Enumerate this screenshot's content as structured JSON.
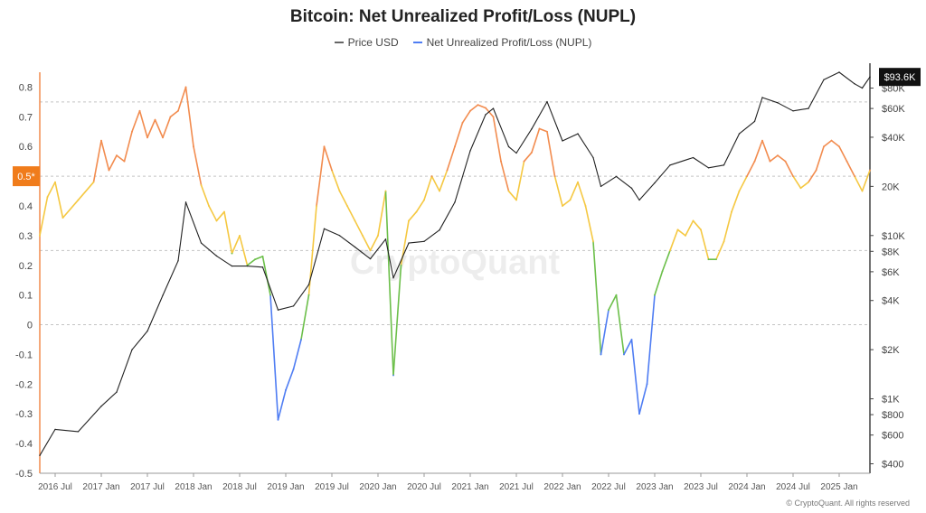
{
  "chart_data": {
    "type": "line",
    "title": "Bitcoin: Net Unrealized Profit/Loss (NUPL)",
    "legend": [
      {
        "name": "Price USD",
        "color": "#666666"
      },
      {
        "name": "Net Unrealized Profit/Loss (NUPL)",
        "color": "#4f7df3"
      }
    ],
    "legend_position": "top-center",
    "grid": false,
    "x_ticks": [
      "2016 Jul",
      "2017 Jan",
      "2017 Jul",
      "2018 Jan",
      "2018 Jul",
      "2019 Jan",
      "2019 Jul",
      "2020 Jan",
      "2020 Jul",
      "2021 Jan",
      "2021 Jul",
      "2022 Jan",
      "2022 Jul",
      "2023 Jan",
      "2023 Jul",
      "2024 Jan",
      "2024 Jul",
      "2025 Jan"
    ],
    "x_range": [
      "2016-05",
      "2025-05"
    ],
    "y_left": {
      "range": [
        -0.5,
        0.85
      ],
      "ticks": [
        "0.8",
        "0.7",
        "0.6",
        "0.5",
        "0.4",
        "0.3",
        "0.2",
        "0.1",
        "0",
        "-0.1",
        "-0.2",
        "-0.3",
        "-0.4",
        "-0.5"
      ]
    },
    "y_right": {
      "scale": "log",
      "ticks": [
        "$80K",
        "$60K",
        "$40K",
        "20K",
        "$10K",
        "$8K",
        "$6K",
        "$4K",
        "$2K",
        "$1K",
        "$800",
        "$600",
        "$400"
      ]
    },
    "reference_lines": [
      0.75,
      0.5,
      0.25,
      0
    ],
    "zone_colors": {
      "euphoria": "#f28c4f",
      "belief": "#f5c842",
      "hope": "#6cbf4a",
      "capitulation": "#4f7df3"
    },
    "current_marker": {
      "label": "0.5*",
      "color": "#f07c1b"
    },
    "price_marker": {
      "label": "$93.6K"
    },
    "watermark": "CryptoQuant",
    "series": [
      {
        "name": "Price USD",
        "color": "#666666",
        "points": [
          [
            "2016-05",
            450
          ],
          [
            "2016-07",
            650
          ],
          [
            "2016-10",
            630
          ],
          [
            "2017-01",
            900
          ],
          [
            "2017-03",
            1100
          ],
          [
            "2017-05",
            2000
          ],
          [
            "2017-07",
            2600
          ],
          [
            "2017-09",
            4300
          ],
          [
            "2017-11",
            7000
          ],
          [
            "2017-12",
            16000
          ],
          [
            "2018-02",
            9000
          ],
          [
            "2018-04",
            7500
          ],
          [
            "2018-06",
            6500
          ],
          [
            "2018-08",
            6500
          ],
          [
            "2018-10",
            6400
          ],
          [
            "2018-12",
            3500
          ],
          [
            "2019-02",
            3700
          ],
          [
            "2019-04",
            5000
          ],
          [
            "2019-06",
            11000
          ],
          [
            "2019-08",
            10000
          ],
          [
            "2019-10",
            8500
          ],
          [
            "2019-12",
            7200
          ],
          [
            "2020-02",
            9500
          ],
          [
            "2020-03",
            5500
          ],
          [
            "2020-05",
            9000
          ],
          [
            "2020-07",
            9200
          ],
          [
            "2020-09",
            10800
          ],
          [
            "2020-11",
            16000
          ],
          [
            "2021-01",
            33000
          ],
          [
            "2021-03",
            55000
          ],
          [
            "2021-04",
            60000
          ],
          [
            "2021-06",
            35000
          ],
          [
            "2021-07",
            32000
          ],
          [
            "2021-09",
            45000
          ],
          [
            "2021-11",
            66000
          ],
          [
            "2022-01",
            38000
          ],
          [
            "2022-03",
            42000
          ],
          [
            "2022-05",
            30000
          ],
          [
            "2022-06",
            20000
          ],
          [
            "2022-08",
            23000
          ],
          [
            "2022-10",
            19500
          ],
          [
            "2022-11",
            16500
          ],
          [
            "2023-01",
            21000
          ],
          [
            "2023-03",
            27000
          ],
          [
            "2023-06",
            30000
          ],
          [
            "2023-08",
            26000
          ],
          [
            "2023-10",
            27000
          ],
          [
            "2023-12",
            42000
          ],
          [
            "2024-02",
            50000
          ],
          [
            "2024-03",
            70000
          ],
          [
            "2024-05",
            65000
          ],
          [
            "2024-07",
            58000
          ],
          [
            "2024-09",
            60000
          ],
          [
            "2024-11",
            90000
          ],
          [
            "2025-01",
            100000
          ],
          [
            "2025-03",
            85000
          ],
          [
            "2025-04",
            80000
          ],
          [
            "2025-05",
            93600
          ]
        ]
      },
      {
        "name": "Net Unrealized Profit/Loss (NUPL)",
        "color": "#4f7df3",
        "points": [
          [
            "2016-05",
            0.3
          ],
          [
            "2016-06",
            0.43
          ],
          [
            "2016-07",
            0.48
          ],
          [
            "2016-08",
            0.36
          ],
          [
            "2016-10",
            0.42
          ],
          [
            "2016-12",
            0.48
          ],
          [
            "2017-01",
            0.62
          ],
          [
            "2017-02",
            0.52
          ],
          [
            "2017-03",
            0.57
          ],
          [
            "2017-04",
            0.55
          ],
          [
            "2017-05",
            0.65
          ],
          [
            "2017-06",
            0.72
          ],
          [
            "2017-07",
            0.63
          ],
          [
            "2017-08",
            0.69
          ],
          [
            "2017-09",
            0.63
          ],
          [
            "2017-10",
            0.7
          ],
          [
            "2017-11",
            0.72
          ],
          [
            "2017-12",
            0.8
          ],
          [
            "2018-01",
            0.6
          ],
          [
            "2018-02",
            0.47
          ],
          [
            "2018-03",
            0.4
          ],
          [
            "2018-04",
            0.35
          ],
          [
            "2018-05",
            0.38
          ],
          [
            "2018-06",
            0.24
          ],
          [
            "2018-07",
            0.3
          ],
          [
            "2018-08",
            0.2
          ],
          [
            "2018-09",
            0.22
          ],
          [
            "2018-10",
            0.23
          ],
          [
            "2018-11",
            0.1
          ],
          [
            "2018-12",
            -0.32
          ],
          [
            "2019-01",
            -0.22
          ],
          [
            "2019-02",
            -0.15
          ],
          [
            "2019-03",
            -0.05
          ],
          [
            "2019-04",
            0.1
          ],
          [
            "2019-05",
            0.4
          ],
          [
            "2019-06",
            0.6
          ],
          [
            "2019-07",
            0.52
          ],
          [
            "2019-08",
            0.45
          ],
          [
            "2019-09",
            0.4
          ],
          [
            "2019-10",
            0.35
          ],
          [
            "2019-11",
            0.3
          ],
          [
            "2019-12",
            0.25
          ],
          [
            "2020-01",
            0.3
          ],
          [
            "2020-02",
            0.45
          ],
          [
            "2020-03",
            -0.17
          ],
          [
            "2020-04",
            0.2
          ],
          [
            "2020-05",
            0.35
          ],
          [
            "2020-06",
            0.38
          ],
          [
            "2020-07",
            0.42
          ],
          [
            "2020-08",
            0.5
          ],
          [
            "2020-09",
            0.45
          ],
          [
            "2020-10",
            0.52
          ],
          [
            "2020-11",
            0.6
          ],
          [
            "2020-12",
            0.68
          ],
          [
            "2021-01",
            0.72
          ],
          [
            "2021-02",
            0.74
          ],
          [
            "2021-03",
            0.73
          ],
          [
            "2021-04",
            0.7
          ],
          [
            "2021-05",
            0.55
          ],
          [
            "2021-06",
            0.45
          ],
          [
            "2021-07",
            0.42
          ],
          [
            "2021-08",
            0.55
          ],
          [
            "2021-09",
            0.58
          ],
          [
            "2021-10",
            0.66
          ],
          [
            "2021-11",
            0.65
          ],
          [
            "2021-12",
            0.5
          ],
          [
            "2022-01",
            0.4
          ],
          [
            "2022-02",
            0.42
          ],
          [
            "2022-03",
            0.48
          ],
          [
            "2022-04",
            0.4
          ],
          [
            "2022-05",
            0.28
          ],
          [
            "2022-06",
            -0.1
          ],
          [
            "2022-07",
            0.05
          ],
          [
            "2022-08",
            0.1
          ],
          [
            "2022-09",
            -0.1
          ],
          [
            "2022-10",
            -0.05
          ],
          [
            "2022-11",
            -0.3
          ],
          [
            "2022-12",
            -0.2
          ],
          [
            "2023-01",
            0.1
          ],
          [
            "2023-02",
            0.18
          ],
          [
            "2023-03",
            0.25
          ],
          [
            "2023-04",
            0.32
          ],
          [
            "2023-05",
            0.3
          ],
          [
            "2023-06",
            0.35
          ],
          [
            "2023-07",
            0.32
          ],
          [
            "2023-08",
            0.22
          ],
          [
            "2023-09",
            0.22
          ],
          [
            "2023-10",
            0.28
          ],
          [
            "2023-11",
            0.38
          ],
          [
            "2023-12",
            0.45
          ],
          [
            "2024-01",
            0.5
          ],
          [
            "2024-02",
            0.55
          ],
          [
            "2024-03",
            0.62
          ],
          [
            "2024-04",
            0.55
          ],
          [
            "2024-05",
            0.57
          ],
          [
            "2024-06",
            0.55
          ],
          [
            "2024-07",
            0.5
          ],
          [
            "2024-08",
            0.46
          ],
          [
            "2024-09",
            0.48
          ],
          [
            "2024-10",
            0.52
          ],
          [
            "2024-11",
            0.6
          ],
          [
            "2024-12",
            0.62
          ],
          [
            "2025-01",
            0.6
          ],
          [
            "2025-02",
            0.55
          ],
          [
            "2025-03",
            0.5
          ],
          [
            "2025-04",
            0.45
          ],
          [
            "2025-05",
            0.52
          ]
        ]
      }
    ]
  },
  "footer": {
    "copyright": "© CryptoQuant. All rights reserved"
  }
}
